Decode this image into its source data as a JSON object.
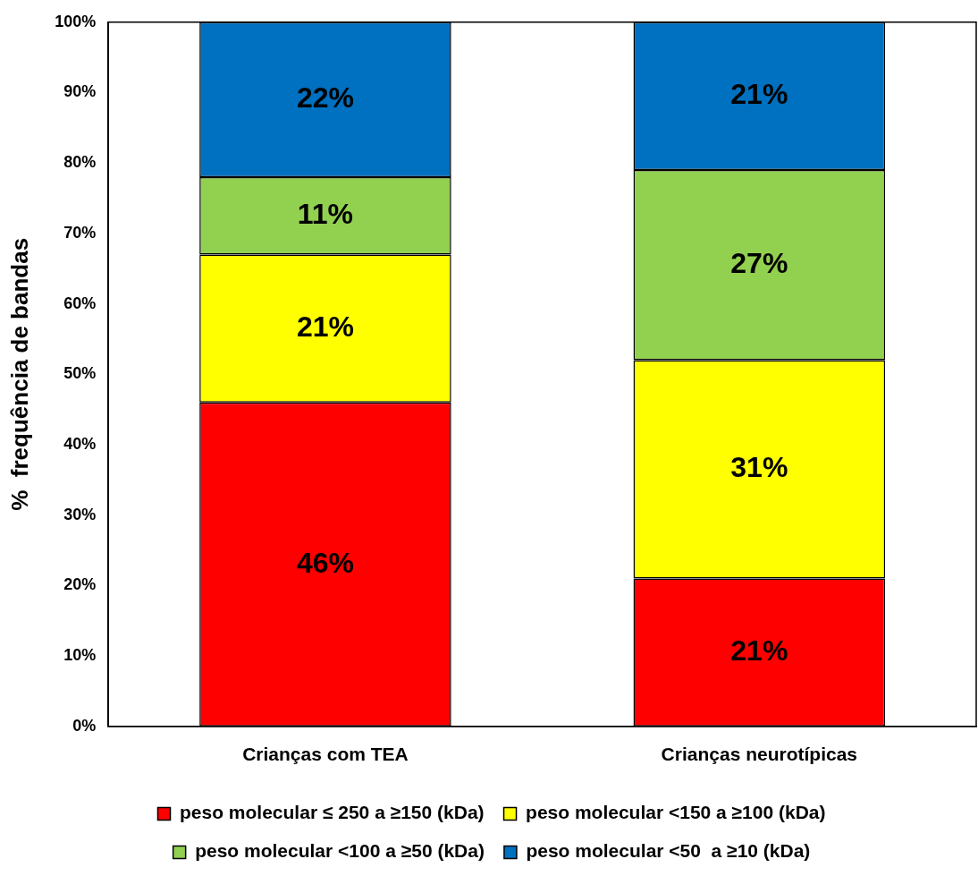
{
  "chart_data": {
    "type": "bar",
    "stacked": true,
    "ylabel": "%  frequência de bandas",
    "categories": [
      "Crianças com TEA",
      "Crianças neurotípicas"
    ],
    "series": [
      {
        "name": "peso molecular ≤ 250 a ≥150 (kDa)",
        "color": "#ff0000",
        "values": [
          46,
          21
        ],
        "value_labels": [
          "46%",
          "21%"
        ]
      },
      {
        "name": "peso molecular <150 a ≥100 (kDa)",
        "color": "#ffff00",
        "values": [
          21,
          31
        ],
        "value_labels": [
          "21%",
          "31%"
        ]
      },
      {
        "name": "peso molecular <100 a ≥50 (kDa)",
        "color": "#92d050",
        "values": [
          11,
          27
        ],
        "value_labels": [
          "11%",
          "27%"
        ]
      },
      {
        "name": "peso molecular <50  a ≥10 (kDa)",
        "color": "#0070c0",
        "values": [
          22,
          21
        ],
        "value_labels": [
          "22%",
          "21%"
        ]
      }
    ],
    "ylim": [
      0,
      100
    ],
    "yticks": [
      {
        "value": 0,
        "label": "0%"
      },
      {
        "value": 10,
        "label": "10%"
      },
      {
        "value": 20,
        "label": "20%"
      },
      {
        "value": 30,
        "label": "30%"
      },
      {
        "value": 40,
        "label": "40%"
      },
      {
        "value": 50,
        "label": "50%"
      },
      {
        "value": 60,
        "label": "60%"
      },
      {
        "value": 70,
        "label": "70%"
      },
      {
        "value": 80,
        "label": "80%"
      },
      {
        "value": 90,
        "label": "90%"
      },
      {
        "value": 100,
        "label": "100%"
      }
    ],
    "legend": "bottom"
  }
}
